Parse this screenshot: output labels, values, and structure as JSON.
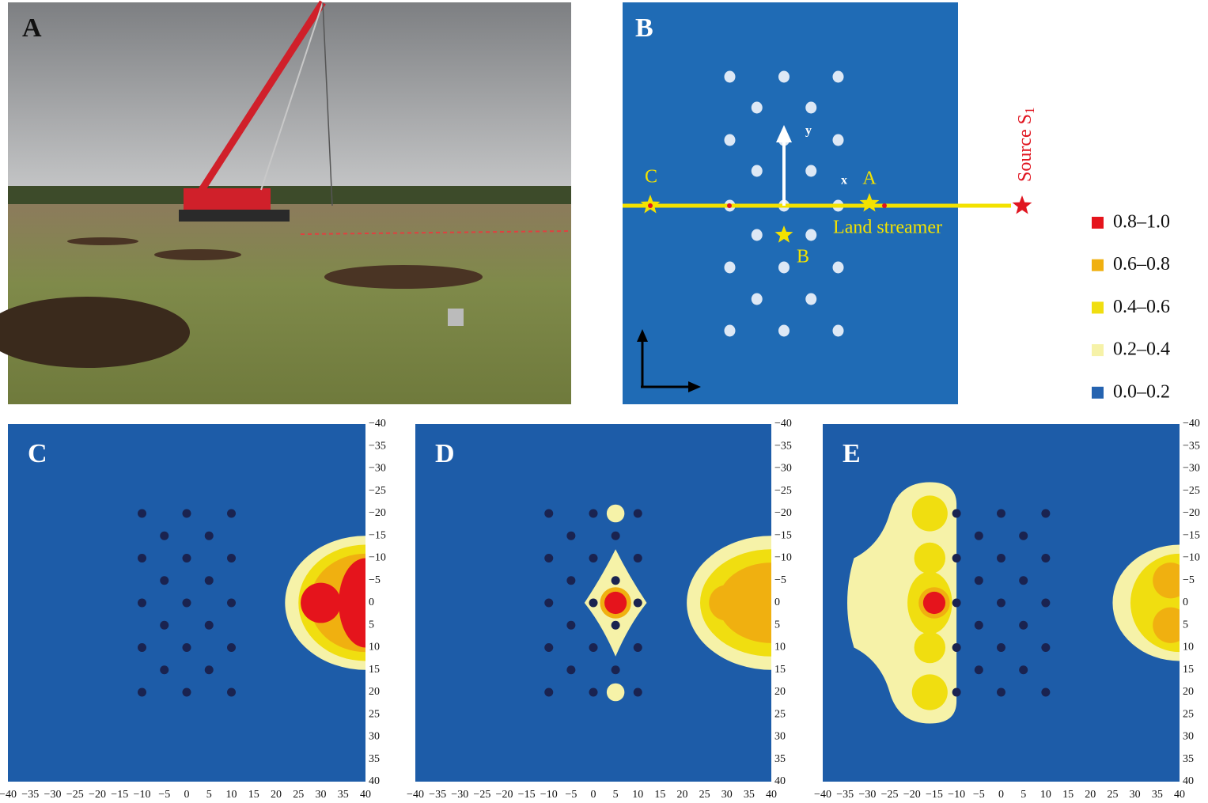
{
  "panel_a": {
    "label": "A"
  },
  "panel_b": {
    "label": "B",
    "axis_y": "y",
    "axis_x": "x",
    "point_a": "A",
    "point_b": "B",
    "point_c": "C",
    "streamer": "Land streamer",
    "source": "Source S",
    "source_sub": "1"
  },
  "legend": [
    "0.8–1.0",
    "0.6–0.8",
    "0.4–0.6",
    "0.2–0.4",
    "0.0–0.2"
  ],
  "maps": [
    {
      "label": "C"
    },
    {
      "label": "D"
    },
    {
      "label": "E"
    }
  ],
  "x_ticks": [
    "−40",
    "−35",
    "−30",
    "−25",
    "−20",
    "−15",
    "−10",
    "−5",
    "0",
    "5",
    "10",
    "15",
    "20",
    "25",
    "30",
    "35",
    "40"
  ],
  "y_ticks": [
    "−40",
    "−35",
    "−30",
    "−25",
    "−20",
    "−15",
    "−10",
    "−5",
    "0",
    "5",
    "10",
    "15",
    "20",
    "25",
    "30",
    "35",
    "40"
  ]
}
